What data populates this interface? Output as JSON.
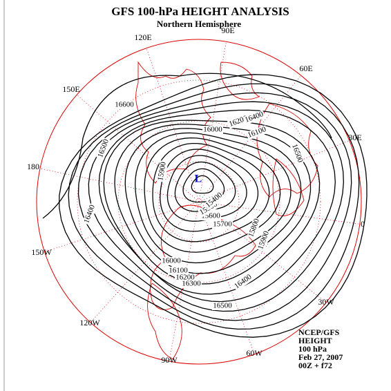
{
  "header": {
    "title": "GFS 100-hPa HEIGHT ANALYSIS",
    "subtitle": "Northern Hemisphere"
  },
  "longitudes": [
    "90E",
    "60E",
    "30E",
    "0",
    "30W",
    "60W",
    "90W",
    "120W",
    "150W",
    "180",
    "150E",
    "120E"
  ],
  "low_marker": "L",
  "contour_labels": [
    "16600",
    "16500",
    "16400",
    "16000",
    "16200",
    "16400",
    "16100",
    "16500",
    "15900",
    "15800",
    "15900",
    "15700",
    "15600",
    "15500",
    "15400",
    "16000",
    "16100",
    "16200",
    "16300",
    "16400",
    "16500"
  ],
  "info": [
    "NCEP/GFS",
    "HEIGHT",
    "100 hPa",
    "Feb 27, 2007",
    "00Z + f72"
  ]
}
